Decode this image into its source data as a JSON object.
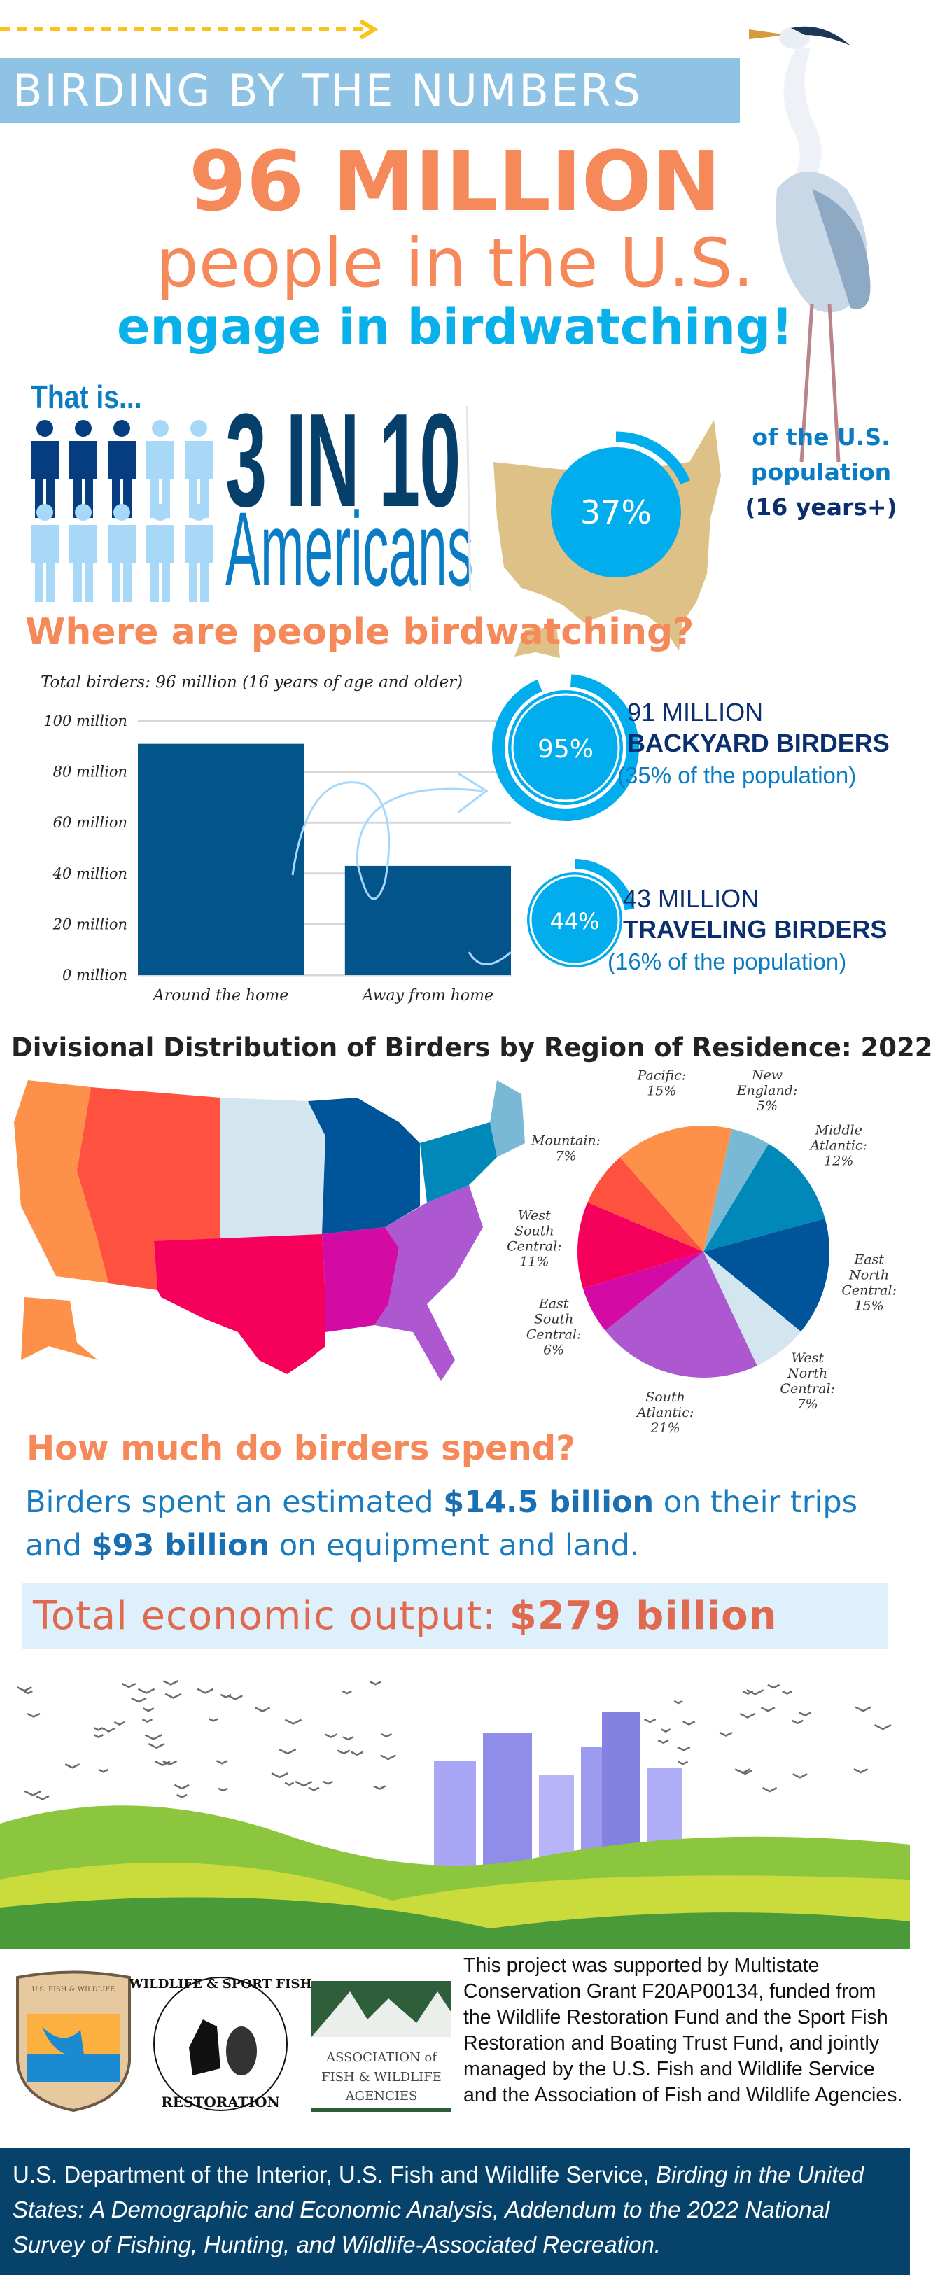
{
  "header": {
    "title": "BIRDING BY THE NUMBERS",
    "headline_number": "96 MILLION",
    "headline_line2": "people in the U.S.",
    "headline_line3": "engage in birdwatching!"
  },
  "ratio": {
    "intro": "That is...",
    "ratio_text": "3 IN 10",
    "ratio_sub": "Americans",
    "people_icons": {
      "filled": 3,
      "total": 10
    },
    "colors": {
      "filled": "#063c80",
      "empty": "#a8d8f8"
    }
  },
  "population": {
    "percent_label": "37%",
    "percent_value": 37,
    "note_line1": "of the U.S.",
    "note_line2": "population",
    "note_line3": "(16 years+)"
  },
  "where": {
    "heading": "Where are people birdwatching?",
    "backyard": {
      "percent_label": "95%",
      "percent_value": 95,
      "count": "91 MILLION",
      "label": "BACKYARD BIRDERS",
      "share": "(35% of the population)"
    },
    "traveling": {
      "percent_label": "44%",
      "percent_value": 44,
      "count": "43 MILLION",
      "label": "TRAVELING BIRDERS",
      "share": "(16% of the population)"
    }
  },
  "chart_data": [
    {
      "type": "bar",
      "title": "Total birders: 96 million (16 years of age and older)",
      "categories": [
        "Around the home",
        "Away from home"
      ],
      "values": [
        91,
        43
      ],
      "unit": "million",
      "ylim": [
        0,
        100
      ],
      "yticks": [
        0,
        20,
        40,
        60,
        80,
        100
      ],
      "ytick_labels": [
        "0 million",
        "20 million",
        "40 million",
        "60 million",
        "80 million",
        "100 million"
      ],
      "grid": true,
      "bar_color": "#03548a"
    },
    {
      "type": "pie",
      "title": "Divisional Distribution of Birders by Region of Residence: 2022",
      "slices": [
        {
          "name": "New England",
          "value": 5,
          "label": "5%",
          "color": "#7ab9d5"
        },
        {
          "name": "Middle Atlantic",
          "value": 12,
          "label": "12%",
          "color": "#0088b9"
        },
        {
          "name": "East North Central",
          "value": 15,
          "label": "15%",
          "color": "#00559a"
        },
        {
          "name": "West North Central",
          "value": 7,
          "label": "7%",
          "color": "#d3e6f0"
        },
        {
          "name": "South Atlantic",
          "value": 21,
          "label": "21%",
          "color": "#ad57d0"
        },
        {
          "name": "East South Central",
          "value": 6,
          "label": "6%",
          "color": "#d40aa4"
        },
        {
          "name": "West South Central",
          "value": 11,
          "label": "11%",
          "color": "#f5005a"
        },
        {
          "name": "Mountain",
          "value": 7,
          "label": "7%",
          "color": "#ff5140"
        },
        {
          "name": "Pacific",
          "value": 15,
          "label": "15%",
          "color": "#fd914a"
        }
      ]
    }
  ],
  "spend": {
    "heading": "How much do birders spend?",
    "text_1": "Birders spent an estimated ",
    "amount_trips": "$14.5 billion",
    "text_2": " on their trips and ",
    "amount_equipment": "$93 billion",
    "text_3": " on equipment and land.",
    "total_label": "Total economic output: ",
    "total_value": "$279 billion"
  },
  "logos": {
    "usfws": "U.S. FISH & WILDLIFE SERVICE",
    "wsfr": "WILDLIFE & SPORT FISH RESTORATION",
    "afwa_line1": "ASSOCIATION of",
    "afwa_line2": "FISH & WILDLIFE",
    "afwa_line3": "AGENCIES"
  },
  "support_text": "This project was supported by Multistate Conservation Grant F20AP00134, funded from the Wildlife Restoration Fund and the Sport Fish Restoration and Boating Trust Fund, and jointly managed by the U.S. Fish and Wildlife Service and the Association of Fish and Wildlife Agencies.",
  "footer": {
    "plain": "U.S. Department of the Interior, U.S. Fish and Wildlife Service, ",
    "italic": "Birding in the United States: A Demographic and Economic Analysis, Addendum to the 2022 National Survey of Fishing, Hunting, and Wildlife-Associated Recreation."
  }
}
